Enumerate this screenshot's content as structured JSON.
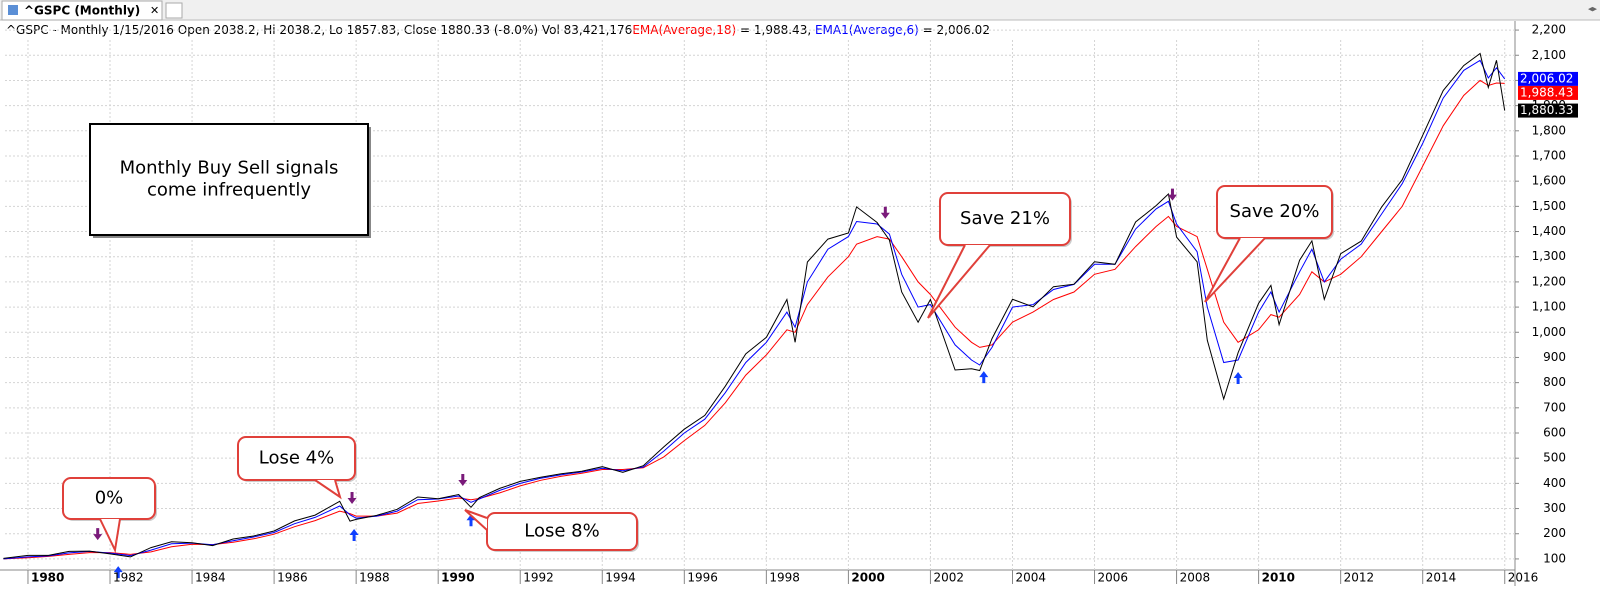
{
  "tab": {
    "title": "^GSPC (Monthly)"
  },
  "header": {
    "info": "^GSPC - Monthly 1/15/2016 Open 2038.2, Hi 2038.2, Lo 1857.83, Close 1880.33 (-8.0%) Vol 83,421,176",
    "ema18_name": "EMA(Average,18)",
    "ema18_value": " = 1,988.43, ",
    "ema6_name": "EMA1(Average,6)",
    "ema6_value": " = 2,006.02"
  },
  "chart_data": {
    "type": "line",
    "x": [
      1979.4,
      1980.0,
      1980.5,
      1981.0,
      1981.5,
      1982.0,
      1982.5,
      1983.0,
      1983.5,
      1984.0,
      1984.5,
      1985.0,
      1985.5,
      1986.0,
      1986.5,
      1987.0,
      1987.6,
      1987.85,
      1988.0,
      1988.5,
      1989.0,
      1989.5,
      1990.0,
      1990.5,
      1990.8,
      1991.0,
      1991.5,
      1992.0,
      1992.5,
      1993.0,
      1993.5,
      1994.0,
      1994.5,
      1995.0,
      1995.5,
      1996.0,
      1996.5,
      1997.0,
      1997.5,
      1998.0,
      1998.5,
      1998.7,
      1999.0,
      1999.5,
      2000.0,
      2000.2,
      2000.7,
      2001.0,
      2001.3,
      2001.7,
      2002.0,
      2002.6,
      2003.0,
      2003.2,
      2003.5,
      2004.0,
      2004.5,
      2005.0,
      2005.5,
      2006.0,
      2006.5,
      2007.0,
      2007.5,
      2007.8,
      2008.0,
      2008.5,
      2008.75,
      2009.15,
      2009.5,
      2010.0,
      2010.3,
      2010.5,
      2011.0,
      2011.3,
      2011.6,
      2012.0,
      2012.5,
      2013.0,
      2013.5,
      2014.0,
      2014.5,
      2015.0,
      2015.4,
      2015.6,
      2015.8,
      2016.0
    ],
    "series": [
      {
        "color": "#000000",
        "price_tag": "1,880.33",
        "values": [
          102,
          114,
          114,
          130,
          131,
          120,
          108,
          145,
          168,
          164,
          153,
          179,
          191,
          211,
          251,
          274,
          329,
          250,
          257,
          273,
          297,
          346,
          339,
          356,
          305,
          343,
          380,
          408,
          424,
          438,
          448,
          466,
          444,
          470,
          545,
          615,
          670,
          786,
          914,
          980,
          1130,
          960,
          1279,
          1370,
          1394,
          1498,
          1436,
          1366,
          1160,
          1040,
          1130,
          850,
          855,
          848,
          975,
          1131,
          1101,
          1181,
          1191,
          1280,
          1270,
          1438,
          1503,
          1549,
          1378,
          1280,
          968,
          735,
          919,
          1115,
          1186,
          1030,
          1286,
          1363,
          1131,
          1312,
          1362,
          1498,
          1606,
          1782,
          1960,
          2059,
          2107,
          1972,
          2080,
          1880.33
        ]
      },
      {
        "color": "#ff0000",
        "price_tag": "1,988.43",
        "values": [
          100,
          105,
          110,
          118,
          125,
          125,
          118,
          128,
          148,
          158,
          157,
          166,
          180,
          198,
          228,
          252,
          290,
          280,
          270,
          270,
          282,
          320,
          330,
          342,
          335,
          340,
          362,
          390,
          412,
          428,
          440,
          455,
          455,
          462,
          505,
          570,
          630,
          720,
          830,
          910,
          1010,
          1000,
          1110,
          1220,
          1300,
          1350,
          1380,
          1370,
          1300,
          1200,
          1150,
          1020,
          960,
          940,
          950,
          1040,
          1080,
          1130,
          1160,
          1230,
          1250,
          1340,
          1420,
          1460,
          1420,
          1380,
          1250,
          1040,
          960,
          1010,
          1070,
          1060,
          1150,
          1240,
          1200,
          1230,
          1300,
          1400,
          1500,
          1660,
          1820,
          1940,
          2000,
          1980,
          1990,
          1988.43
        ]
      },
      {
        "color": "#0000ff",
        "price_tag": "2,006.02",
        "values": [
          100,
          108,
          112,
          124,
          130,
          123,
          113,
          135,
          160,
          163,
          156,
          172,
          187,
          205,
          240,
          265,
          310,
          275,
          262,
          270,
          290,
          335,
          338,
          350,
          325,
          338,
          372,
          400,
          420,
          434,
          445,
          460,
          450,
          465,
          528,
          600,
          655,
          760,
          880,
          960,
          1080,
          1020,
          1200,
          1330,
          1380,
          1440,
          1430,
          1390,
          1230,
          1100,
          1110,
          950,
          890,
          870,
          940,
          1100,
          1110,
          1170,
          1190,
          1270,
          1270,
          1410,
          1490,
          1520,
          1430,
          1320,
          1100,
          880,
          890,
          1080,
          1160,
          1080,
          1240,
          1330,
          1200,
          1290,
          1350,
          1470,
          1590,
          1750,
          1930,
          2040,
          2080,
          2010,
          2050,
          2006.02
        ]
      }
    ],
    "sell_signals": [
      1981.7,
      1987.9,
      1990.6,
      2000.9,
      2007.9
    ],
    "buy_signals": [
      1982.2,
      1987.95,
      1990.8,
      2003.3,
      2009.5
    ],
    "xlim": [
      1979.44,
      2016.25
    ],
    "xticks": [
      1980,
      1982,
      1984,
      1986,
      1988,
      1990,
      1992,
      1994,
      1996,
      1998,
      2000,
      2002,
      2004,
      2006,
      2008,
      2010,
      2012,
      2014,
      2016
    ],
    "ylim": [
      56,
      2240
    ],
    "yticks": [
      100,
      200,
      300,
      400,
      500,
      600,
      700,
      800,
      900,
      {
        "value": 1000,
        "label": "1,000"
      },
      {
        "value": 1100,
        "label": "1,100"
      },
      {
        "value": 1200,
        "label": "1,200"
      },
      {
        "value": 1300,
        "label": "1,300"
      },
      {
        "value": 1400,
        "label": "1,400"
      },
      {
        "value": 1500,
        "label": "1,500"
      },
      {
        "value": 1600,
        "label": "1,600"
      },
      {
        "value": 1700,
        "label": "1,700"
      },
      {
        "value": 1800,
        "label": "1,800"
      },
      {
        "value": 1900,
        "label": "1,900"
      },
      {
        "value": 2000,
        "label": "2,000"
      },
      {
        "value": 2100,
        "label": "2,100"
      },
      {
        "value": 2200,
        "label": "2,200"
      }
    ],
    "grid": true,
    "annotations": [
      {
        "lines": [
          "Monthly Buy Sell signals",
          "come infrequently"
        ]
      },
      {
        "lines": [
          "0%"
        ]
      },
      {
        "lines": [
          "Lose 4%"
        ]
      },
      {
        "lines": [
          "Lose 8%"
        ]
      },
      {
        "lines": [
          "Save 21%"
        ]
      },
      {
        "lines": [
          "Save 20%"
        ]
      }
    ]
  }
}
